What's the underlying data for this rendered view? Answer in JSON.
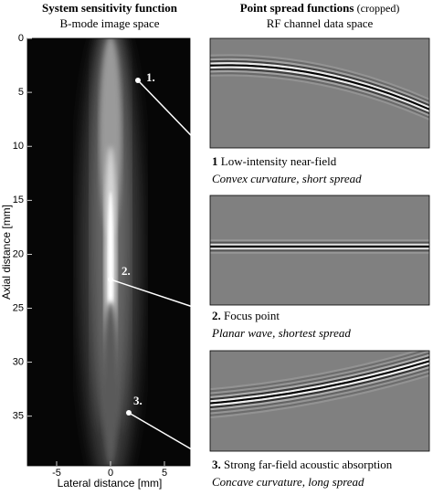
{
  "left_panel": {
    "title": "System sensitivity function",
    "subtitle": "B-mode image space",
    "x_axis_label": "Lateral distance [mm]",
    "y_axis_label": "Axial distance [mm]",
    "x_ticks": [
      "-5",
      "0",
      "5"
    ],
    "y_ticks": [
      "0",
      "5",
      "10",
      "15",
      "20",
      "25",
      "30",
      "35"
    ],
    "points": [
      "1.",
      "2.",
      "3."
    ]
  },
  "right_panel": {
    "title": "Point spread functions",
    "title_note": "(cropped)",
    "subtitle": "RF channel data space",
    "panels": [
      {
        "number": "1",
        "caption": "Low-intensity near-field",
        "description": "Convex curvature, short spread"
      },
      {
        "number": "2.",
        "caption": "Focus point",
        "description": "Planar wave, shortest spread"
      },
      {
        "number": "3.",
        "caption": "Strong far-field acoustic absorption",
        "description": "Concave curvature, long spread"
      }
    ]
  }
}
